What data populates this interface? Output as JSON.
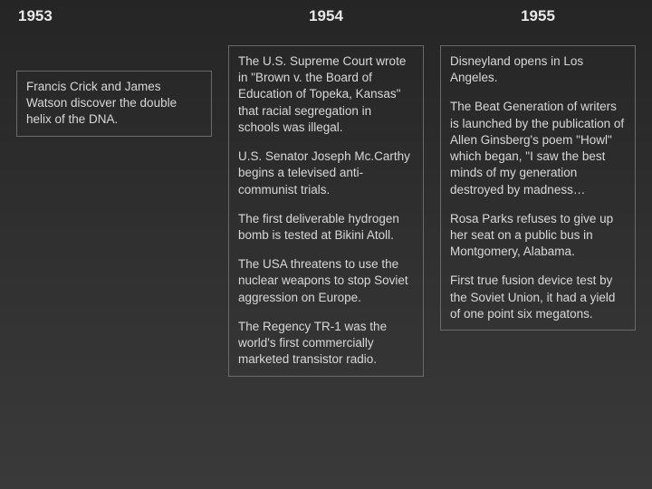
{
  "columns": [
    {
      "year": "1953",
      "entries": [
        "Francis Crick and James Watson discover the double helix of the DNA."
      ]
    },
    {
      "year": "1954",
      "entries": [
        "The U.S. Supreme Court wrote in \"Brown v. the Board of Education of Topeka, Kansas\" that racial segregation in schools was illegal.",
        "U.S. Senator Joseph Mc.Carthy begins a televised anti-communist trials.",
        "The first deliverable hydrogen bomb is tested at Bikini Atoll.",
        "The USA threatens to use the nuclear weapons to stop Soviet aggression on Europe.",
        "The Regency TR-1 was the world's first commercially marketed transistor radio."
      ]
    },
    {
      "year": "1955",
      "entries": [
        "Disneyland opens in Los Angeles.",
        "The Beat Generation of writers is launched by the publication of Allen Ginsberg's poem \"Howl\" which began, \"I saw the best minds of my generation destroyed by madness…",
        "Rosa Parks refuses to give up her seat on a public bus in Montgomery, Alabama.",
        "First true fusion device test by the Soviet Union, it had a yield of one point six megatons."
      ]
    }
  ]
}
